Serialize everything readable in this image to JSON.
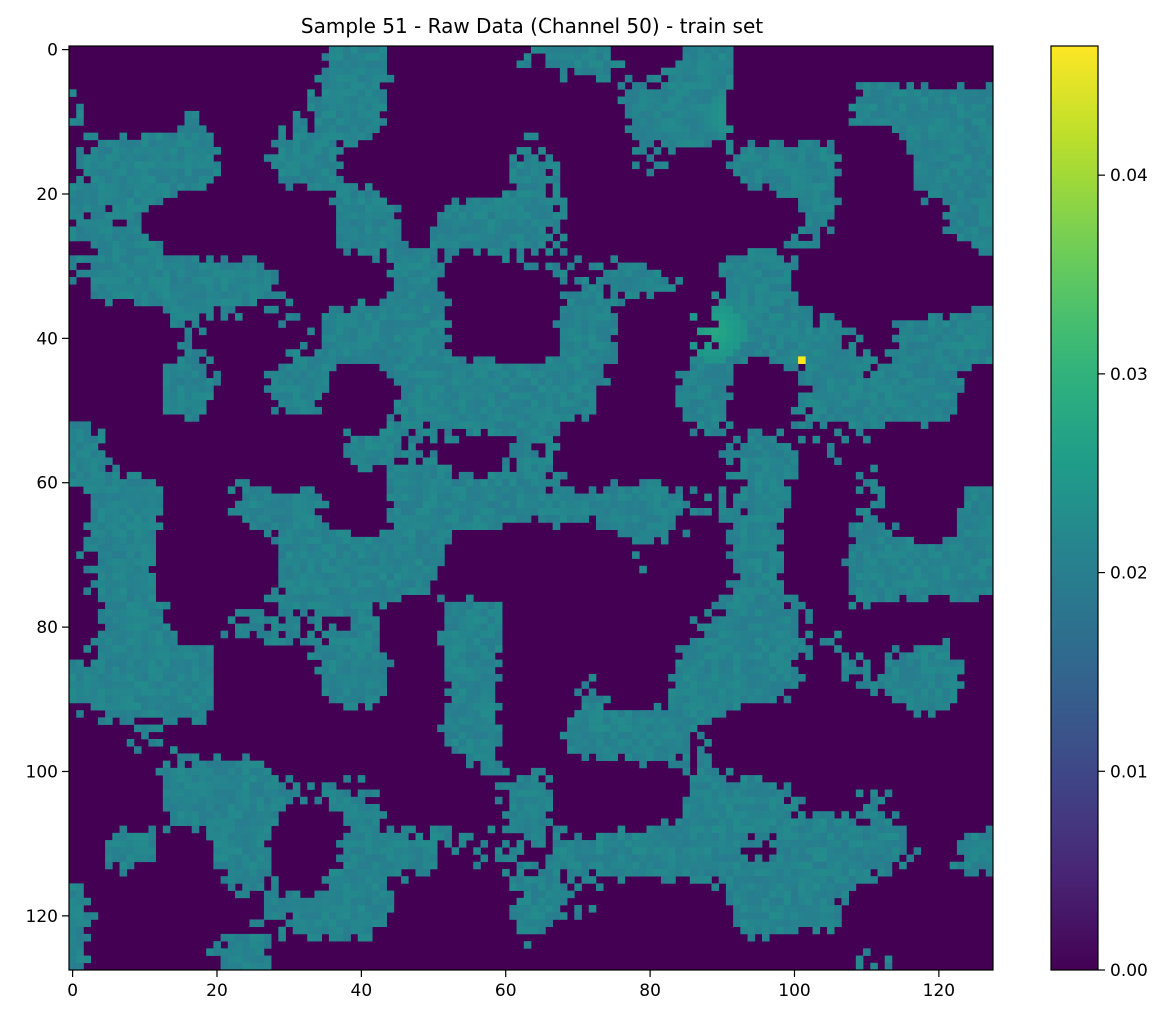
{
  "chart_data": {
    "type": "heatmap",
    "title": "Sample 51 - Raw Data (Channel 50) - train set",
    "xlabel": "",
    "ylabel": "",
    "grid_size": [
      128,
      128
    ],
    "xlim": [
      0,
      127
    ],
    "ylim": [
      127,
      0
    ],
    "x_ticks": [
      0,
      20,
      40,
      60,
      80,
      100,
      120
    ],
    "y_ticks": [
      0,
      20,
      40,
      60,
      80,
      100,
      120
    ],
    "colormap": "viridis",
    "colorbar": {
      "range": [
        0.0,
        0.0465
      ],
      "ticks": [
        0.0,
        0.01,
        0.02,
        0.03,
        0.04
      ],
      "tick_labels": [
        "0.00",
        "0.01",
        "0.02",
        "0.03",
        "0.04"
      ]
    },
    "background_value": 0.0,
    "typical_feature_value": 0.021,
    "max_value": 0.0465,
    "max_location": [
      101,
      43
    ],
    "high_value_regions": [
      {
        "x": 89,
        "y": 39,
        "value": 0.028
      },
      {
        "x": 92,
        "y": 9,
        "value": 0.026
      },
      {
        "x": 50,
        "y": 124,
        "value": 0.027
      },
      {
        "x": 20,
        "y": 22,
        "value": 0.026
      },
      {
        "x": 81,
        "y": 41,
        "value": 0.027
      }
    ],
    "grid": false,
    "legend": "none"
  },
  "colors": {
    "background": "#440154",
    "feature": "#26818e",
    "max": "#fde725",
    "axes": "#000000"
  }
}
